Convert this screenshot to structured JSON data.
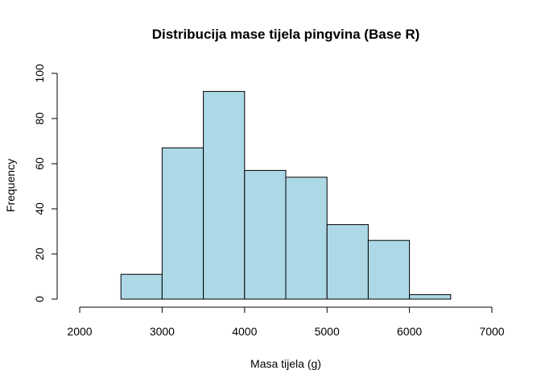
{
  "chart_data": {
    "type": "bar",
    "subtype": "histogram",
    "title": "Distribucija mase tijela pingvina (Base R)",
    "xlabel": "Masa tijela (g)",
    "ylabel": "Frequency",
    "bins": [
      {
        "from": 2500,
        "to": 3000,
        "count": 11
      },
      {
        "from": 3000,
        "to": 3500,
        "count": 67
      },
      {
        "from": 3500,
        "to": 4000,
        "count": 92
      },
      {
        "from": 4000,
        "to": 4500,
        "count": 57
      },
      {
        "from": 4500,
        "to": 5000,
        "count": 54
      },
      {
        "from": 5000,
        "to": 5500,
        "count": 33
      },
      {
        "from": 5500,
        "to": 6000,
        "count": 26
      },
      {
        "from": 6000,
        "to": 6500,
        "count": 2
      }
    ],
    "xlim": [
      2000,
      7000
    ],
    "ylim": [
      0,
      100
    ],
    "x_ticks": [
      "2000",
      "3000",
      "4000",
      "5000",
      "6000",
      "7000"
    ],
    "y_ticks": [
      "0",
      "20",
      "40",
      "60",
      "80",
      "100"
    ],
    "bar_color": "#ADD8E6",
    "border_color": "#000000",
    "grid": false,
    "legend": "none"
  }
}
